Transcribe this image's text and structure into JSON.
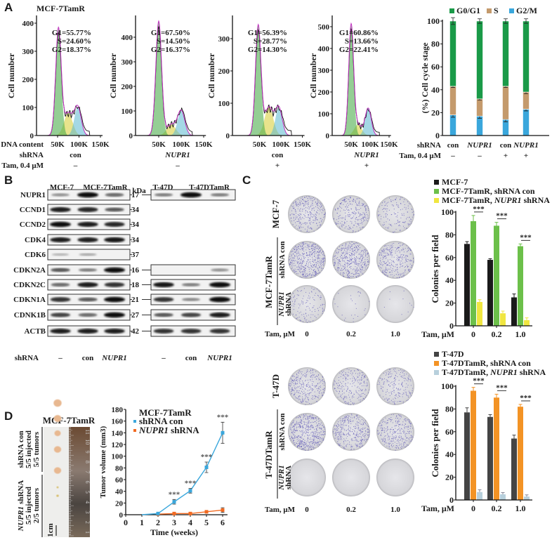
{
  "panel_letters": {
    "a": "A",
    "b": "B",
    "c": "C",
    "d": "D"
  },
  "panelA": {
    "cell_line": "MCF-7TamR",
    "row_labels": {
      "dna": "DNA content",
      "shrna": "shRNA",
      "tam": "Tam, 0.4 μM"
    },
    "bar_row_labels": {
      "shrna": "shRNA",
      "tam": "Tam, 0.4 μM"
    }
  },
  "panelB": {
    "groups_left": [
      "MCF-7",
      "MCF-7TamR"
    ],
    "groups_right": [
      "T-47D",
      "T-47DTamR"
    ],
    "kda_label": "kDa",
    "rows": [
      {
        "name": "NUPR1",
        "kda": "17",
        "left": [
          0.3,
          1,
          0.5
        ],
        "right": [
          0.4,
          1,
          0.4
        ]
      },
      {
        "name": "CCND1",
        "kda": "34",
        "right": null
      },
      {
        "name": "CCND2",
        "kda": "34",
        "left": [
          1,
          0.9,
          0.85
        ],
        "right": null
      },
      {
        "name": "CDK4",
        "kda": "34",
        "right": null
      },
      {
        "name": "CDK6",
        "kda": "37",
        "left": [
          0.12,
          0.18,
          0
        ],
        "right": null
      },
      {
        "name": "CDKN2A",
        "kda": "16",
        "left": [
          0.6,
          0.4,
          1
        ],
        "right": [
          0,
          0,
          0.3
        ]
      },
      {
        "name": "CDKN2C",
        "kda": "18",
        "right": [
          0.95,
          0.4,
          1
        ]
      },
      {
        "name": "CDKN1A",
        "kda": "21",
        "left": [
          0.8,
          0.6,
          1
        ],
        "right": [
          0.8,
          0.35,
          1
        ]
      },
      {
        "name": "CDNK1B",
        "kda": "27",
        "left": [
          0.7,
          0.5,
          1
        ]
      },
      {
        "name": "ACTB",
        "kda": "42"
      }
    ],
    "shrna_label": "shRNA",
    "lanes": [
      "–",
      "con",
      "NUPR1"
    ]
  },
  "panelC": {
    "tam_label": "Tam, μM",
    "doses": [
      "0",
      "0.2",
      "1.0"
    ],
    "blocks": [
      {
        "parental": "MCF-7",
        "resistant": "MCF-7TamR",
        "sub_con": "shRNA con",
        "sub_kd_gene": "NUPR1",
        "sub_kd": "shRNA",
        "colony_density": [
          [
            0.6,
            0.5,
            0.3
          ],
          [
            0.95,
            0.85,
            0.6
          ],
          [
            0.25,
            0.05,
            0.02
          ]
        ]
      },
      {
        "parental": "T-47D",
        "resistant": "T-47DTamR",
        "sub_con": "shRNA con",
        "sub_kd_gene": "NUPR1",
        "sub_kd": "shRNA",
        "colony_density": [
          [
            0.6,
            0.45,
            0.4
          ],
          [
            1,
            0.7,
            0.6
          ],
          [
            0,
            0,
            0
          ]
        ]
      }
    ]
  },
  "panelD": {
    "cell_line": "MCF-7TamR",
    "group_con": [
      "shRNA con",
      "5/5 injected",
      "5/5 tumors"
    ],
    "group_kd_gene": "NUPR1",
    "group_kd": [
      "shRNA",
      "5/5 injected",
      "2/5 tumors"
    ],
    "scale_bar": "1cm",
    "ruler_numbers": [
      "1",
      "2",
      "3",
      "4",
      "5",
      "6",
      "7",
      "8",
      "9",
      "10",
      "11"
    ],
    "tumor_sizes": [
      0.95,
      0.9,
      0.75,
      0.85,
      0.85,
      0.25,
      0.3
    ]
  },
  "colors": {
    "green": "#1a9a48",
    "tan": "#c49a6c",
    "blue": "#3aa7dc",
    "black": "#1a1a1a",
    "lime": "#6cc04a",
    "yellow": "#f0e640",
    "gray": "#444444",
    "orange": "#f39325",
    "lightblue": "#b8d0dc",
    "red_orange": "#f26a21",
    "crystal": "#4a40b0"
  },
  "chart_data": [
    {
      "type": "area",
      "ylabel": "Cell number",
      "yticks": [
        0,
        100,
        200,
        300,
        400
      ],
      "ylim": [
        0,
        410
      ],
      "xticks": [
        "50K",
        "100K",
        "150K"
      ],
      "xtick_values": [
        50,
        100,
        150
      ],
      "stats": [
        "G1=55.77%",
        "S=24.60%",
        "G2=18.37%"
      ],
      "shrna": "con",
      "tam": "–",
      "fits": {
        "G1": {
          "center": 52,
          "peak": 380
        },
        "S": {
          "center": 75,
          "peak": 80
        },
        "G2": {
          "center": 97,
          "peak": 100
        }
      }
    },
    {
      "type": "area",
      "ylabel": "Cell number",
      "yticks": [
        0,
        100,
        200,
        300,
        400
      ],
      "ylim": [
        0,
        470
      ],
      "xticks": [
        "50K",
        "100K",
        "150K"
      ],
      "xtick_values": [
        50,
        100,
        150
      ],
      "stats": [
        "G1=67.50%",
        "S=14.50%",
        "G2=16.37%"
      ],
      "shrna": "NUPR1",
      "tam": "–",
      "fits": {
        "G1": {
          "center": 50,
          "peak": 465
        },
        "S": {
          "center": 78,
          "peak": 45
        },
        "G2": {
          "center": 100,
          "peak": 100
        }
      }
    },
    {
      "type": "area",
      "ylabel": "Cell number",
      "yticks": [
        0,
        100,
        200,
        300
      ],
      "ylim": [
        0,
        360
      ],
      "xticks": [
        "50K",
        "100K",
        "150K"
      ],
      "xtick_values": [
        50,
        100,
        150
      ],
      "stats": [
        "G1=56.39%",
        "S=28.77%",
        "G2=14.30%"
      ],
      "shrna": "con",
      "tam": "+",
      "fits": {
        "G1": {
          "center": 47,
          "peak": 340
        },
        "S": {
          "center": 72,
          "peak": 88
        },
        "G2": {
          "center": 95,
          "peak": 85
        }
      }
    },
    {
      "type": "area",
      "ylabel": "Cell number",
      "yticks": [
        0,
        100,
        200,
        300,
        400,
        500
      ],
      "ylim": [
        0,
        550
      ],
      "xticks": [
        "50K",
        "100K",
        "150K"
      ],
      "xtick_values": [
        50,
        100,
        150
      ],
      "stats": [
        "G1=60.86%",
        "S=13.66%",
        "G2=22.41%"
      ],
      "shrna": "NUPR1",
      "tam": "+",
      "fits": {
        "G1": {
          "center": 50,
          "peak": 505
        },
        "S": {
          "center": 68,
          "peak": 50
        },
        "G2": {
          "center": 95,
          "peak": 125
        }
      }
    },
    {
      "type": "bar",
      "stacked": true,
      "ylabel": "(%) Cell cycle stage",
      "ylim": [
        0,
        100
      ],
      "yticks": [
        0,
        20,
        40,
        60,
        80,
        100
      ],
      "legend": [
        "G0/G1",
        "S",
        "G2/M"
      ],
      "legend_position": "top",
      "categories": [
        {
          "shrna": "con",
          "tam": "–"
        },
        {
          "shrna": "NUPR1",
          "tam": "–"
        },
        {
          "shrna": "con",
          "tam": "+"
        },
        {
          "shrna": "NUPR1",
          "tam": "+"
        }
      ],
      "series": [
        {
          "name": "G2/M",
          "values": [
            18,
            17,
            14,
            23
          ],
          "errors": [
            2,
            2,
            2,
            1.5
          ]
        },
        {
          "name": "S",
          "values": [
            25,
            15,
            29,
            15
          ],
          "errors": [
            1,
            1,
            1,
            1.5
          ]
        },
        {
          "name": "G0/G1",
          "values": [
            57,
            68,
            57,
            62
          ],
          "errors": [
            3,
            2,
            2,
            2
          ]
        }
      ]
    },
    {
      "type": "bar",
      "ylabel": "Colonies per field",
      "ylim": [
        0,
        100
      ],
      "yticks": [
        0,
        20,
        40,
        60,
        80,
        100
      ],
      "xlabel": "Tam, μM",
      "categories": [
        "0",
        "0.2",
        "1.0"
      ],
      "legend_position": "top",
      "series": [
        {
          "name": "MCF-7",
          "values": [
            72,
            58,
            25
          ],
          "errors": [
            2,
            1,
            3
          ]
        },
        {
          "name": "MCF-7TamR, shRNA con",
          "values": [
            92,
            88,
            70
          ],
          "errors": [
            5,
            3,
            2
          ]
        },
        {
          "name_parts": [
            "MCF-7TamR, ",
            "NUPR1",
            " shRNA"
          ],
          "name": "MCF-7TamR, NUPR1 shRNA",
          "values": [
            21,
            11,
            5
          ],
          "errors": [
            2,
            2,
            2
          ]
        }
      ],
      "annotations": [
        "***",
        "***",
        "***"
      ]
    },
    {
      "type": "bar",
      "ylabel": "Colonies per field",
      "ylim": [
        0,
        100
      ],
      "yticks": [
        0,
        20,
        40,
        60,
        80,
        100
      ],
      "xlabel": "Tam, μM",
      "categories": [
        "0",
        "0.2",
        "1.0"
      ],
      "legend_position": "top",
      "series": [
        {
          "name": "T-47D",
          "values": [
            77,
            73,
            54
          ],
          "errors": [
            4,
            2,
            3
          ]
        },
        {
          "name": "T-47DTamR, shRNA con",
          "values": [
            96,
            90,
            82
          ],
          "errors": [
            3,
            3,
            2
          ]
        },
        {
          "name_parts": [
            "T-47DTamR, ",
            "NUPR1",
            " shRNA"
          ],
          "name": "T-47DTamR, NUPR1 shRNA",
          "values": [
            7,
            5,
            3
          ],
          "errors": [
            2,
            1.5,
            1.5
          ]
        }
      ],
      "annotations": [
        "***",
        "***",
        "***"
      ]
    },
    {
      "type": "line",
      "ylabel": "Tumor volume (mm3)",
      "xlabel": "Time (weeks)",
      "ylim": [
        0,
        180
      ],
      "xlim": [
        0,
        6
      ],
      "yticks": [
        0,
        20,
        40,
        60,
        80,
        100,
        120,
        140,
        160,
        180
      ],
      "xticks": [
        0,
        1,
        2,
        3,
        4,
        5,
        6
      ],
      "legend_title": "MCF-7TamR",
      "legend_position": "top-left",
      "series": [
        {
          "name": "shRNA con",
          "x": [
            1,
            2,
            3,
            4,
            5,
            6
          ],
          "values": [
            0,
            2,
            22,
            41,
            81,
            140
          ],
          "errors": [
            0,
            1,
            4,
            4,
            9,
            18
          ]
        },
        {
          "name_parts": [
            "NUPR1",
            " shRNA"
          ],
          "name": "NUPR1 shRNA",
          "x": [
            2,
            3,
            4,
            5,
            6
          ],
          "values": [
            1,
            2,
            2,
            5,
            8
          ],
          "errors": [
            0.5,
            1,
            1,
            1.5,
            4
          ]
        }
      ],
      "annotations": [
        {
          "x": 3,
          "text": "***"
        },
        {
          "x": 4,
          "text": "***"
        },
        {
          "x": 5,
          "text": "***"
        },
        {
          "x": 6,
          "text": "***"
        }
      ]
    }
  ]
}
